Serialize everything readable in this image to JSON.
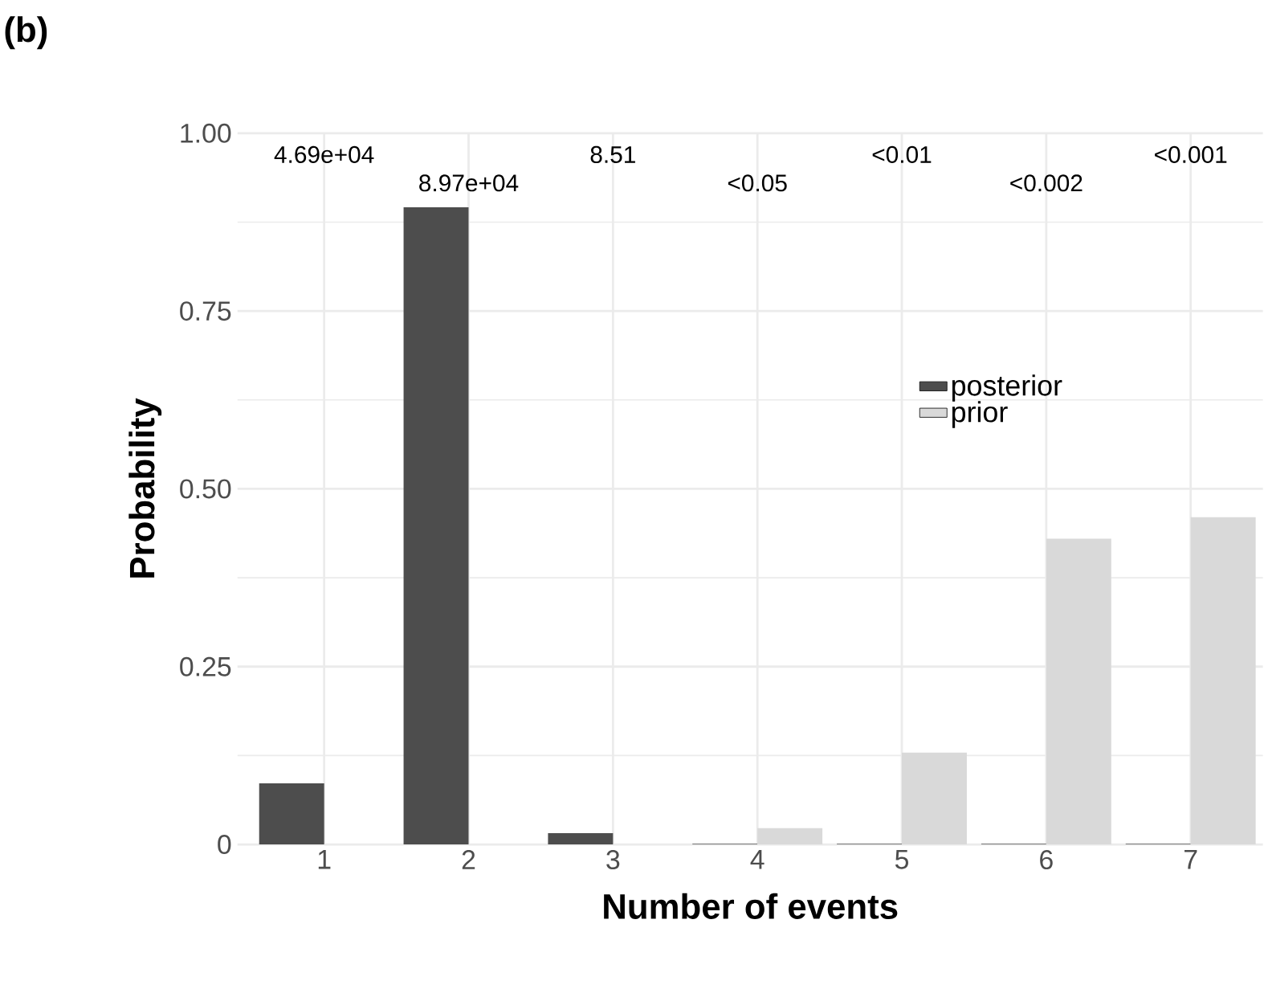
{
  "chart_data": {
    "type": "bar",
    "title": "(b)",
    "xlabel": "Number of events",
    "ylabel": "Probability",
    "categories": [
      "1",
      "2",
      "3",
      "4",
      "5",
      "6",
      "7"
    ],
    "series": [
      {
        "name": "posterior",
        "color": "#4d4d4d",
        "values": [
          0.086,
          0.896,
          0.016,
          0.001,
          0.001,
          0.001,
          0.001
        ]
      },
      {
        "name": "prior",
        "color": "#d9d9d9",
        "values": [
          0,
          0,
          0,
          0.023,
          0.129,
          0.43,
          0.46
        ]
      }
    ],
    "ylim": [
      0,
      1
    ],
    "yticks": [
      0,
      {
        "value": 0.25,
        "label": "0.25"
      },
      {
        "value": 0.5,
        "label": "0.50"
      },
      {
        "value": 0.75,
        "label": "0.75"
      },
      {
        "value": 1,
        "label": "1.00"
      }
    ],
    "grid": true,
    "legend": "right",
    "annotations": [
      "4.69e+04",
      "8.97e+04",
      "8.51",
      "<0.05",
      "<0.01",
      "<0.002",
      "<0.001"
    ]
  }
}
